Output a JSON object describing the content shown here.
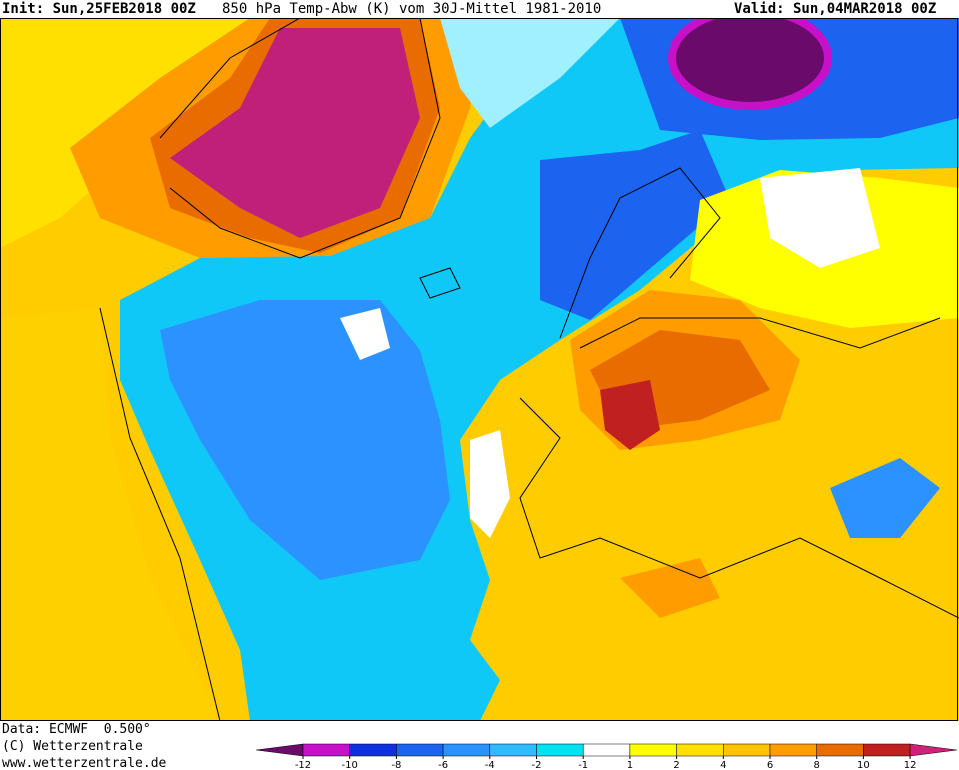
{
  "header": {
    "init": "Init: Sun,25FEB2018 00Z",
    "title": "850 hPa Temp-Abw (K) vom 30J-Mittel 1981-2010",
    "valid": "Valid: Sun,04MAR2018 00Z"
  },
  "footer": {
    "data": "Data: ECMWF  0.500°",
    "copyright": "(C) Wetterzentrale",
    "url": "www.wetterzentrale.de"
  },
  "colorbar": {
    "ticks": [
      -12,
      -10,
      -8,
      -6,
      -4,
      -2,
      -1,
      1,
      2,
      4,
      6,
      8,
      10,
      12
    ],
    "colors": [
      "#6a0a6a",
      "#c810c8",
      "#1030e0",
      "#1c64f0",
      "#2c92ff",
      "#30baff",
      "#00e2f0",
      "#ffffff",
      "#ffff00",
      "#ffe000",
      "#ffc400",
      "#ff9c00",
      "#e86c00",
      "#c02020",
      "#d0207a"
    ]
  }
}
